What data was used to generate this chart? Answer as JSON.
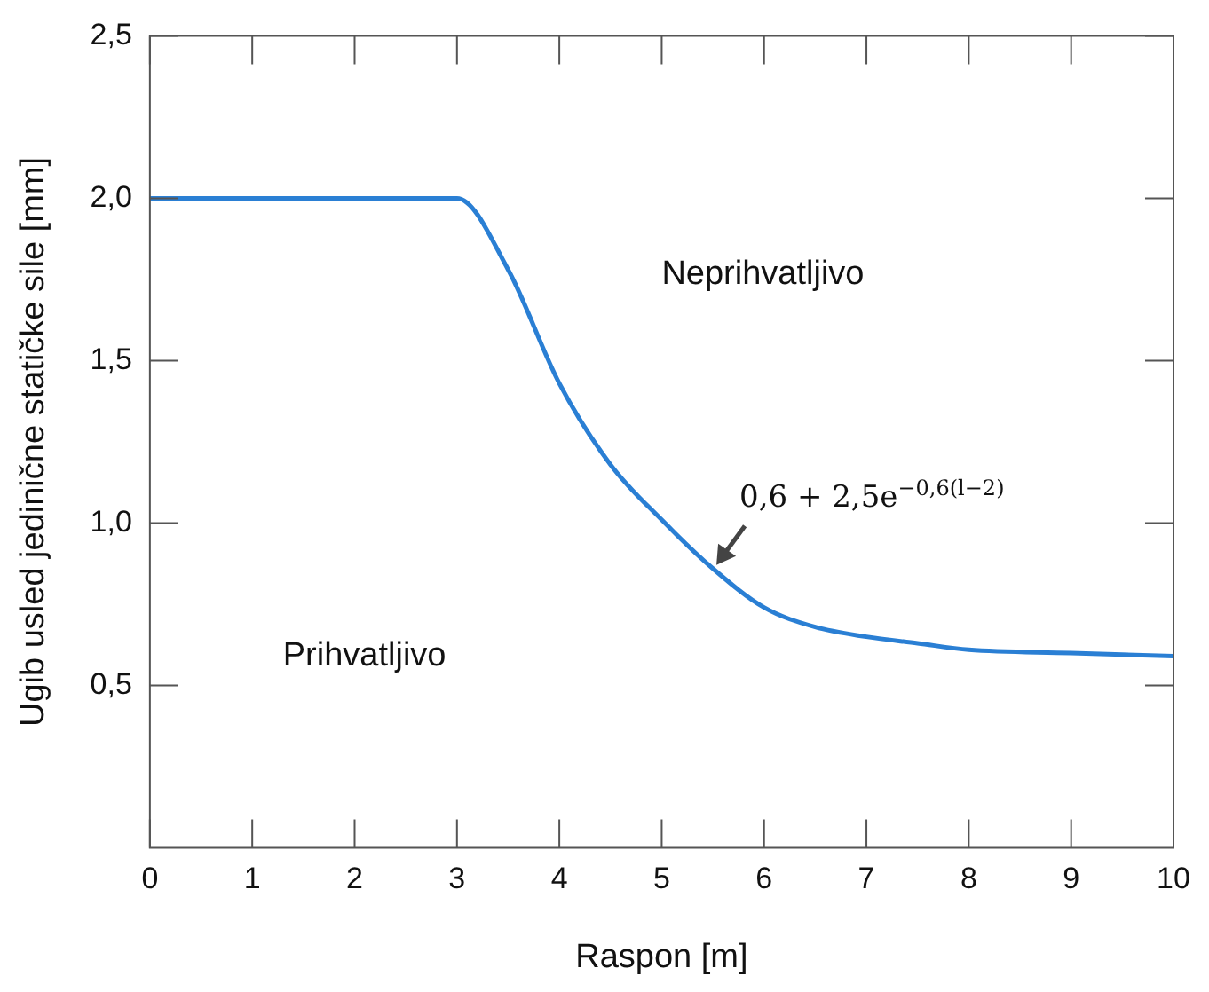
{
  "chart_data": {
    "type": "line",
    "xlabel": "Raspon [m]",
    "ylabel": "Ugib usled jedinične statičke sile [mm]",
    "x": [
      0,
      1,
      2,
      3,
      3.5,
      4,
      4.5,
      5,
      5.5,
      6,
      6.5,
      7,
      7.5,
      8,
      9,
      10
    ],
    "series": [
      {
        "color": "#2a7fd4",
        "values": [
          2.0,
          2.0,
          2.0,
          2.0,
          1.78,
          1.43,
          1.18,
          1.01,
          0.86,
          0.74,
          0.68,
          0.65,
          0.63,
          0.61,
          0.6,
          0.59
        ]
      }
    ],
    "xlim": [
      0,
      10
    ],
    "xticks": [
      0,
      1,
      2,
      3,
      4,
      5,
      6,
      7,
      8,
      9,
      10
    ],
    "ylim": [
      0,
      2.5
    ],
    "yticks": [
      {
        "value": 0.5,
        "label": "0,5"
      },
      {
        "value": 1,
        "label": "1,0"
      },
      {
        "value": 1.5,
        "label": "1,5"
      },
      {
        "value": 2,
        "label": "2,0"
      },
      {
        "value": 2.5,
        "label": "2,5"
      }
    ],
    "grid": false,
    "legend": false,
    "marker": "none",
    "line_style": "solid",
    "annotations": [
      "Neprihvatljivo",
      "Prihvatljivo",
      {
        "text": "0,6 + 2,5e$^{−0,6(l−2)}$",
        "x": 5.5,
        "y": 0.86
      }
    ]
  }
}
